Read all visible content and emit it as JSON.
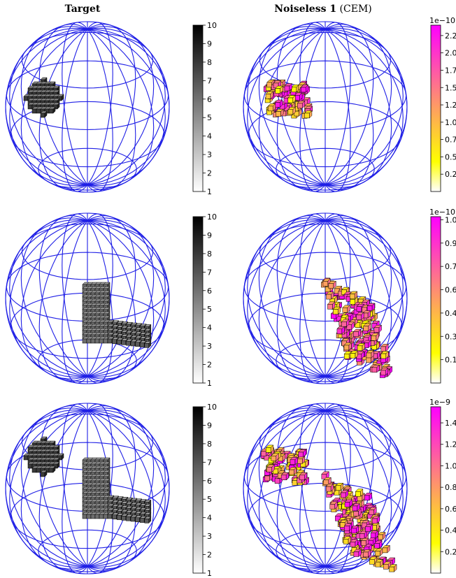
{
  "figure": {
    "col_titles": [
      {
        "bold": "Target",
        "normal": ""
      },
      {
        "bold": "Noiseless 1",
        "normal": " (CEM)"
      }
    ]
  },
  "colors": {
    "wireframe": "#1f1fe6",
    "gray_low": "#ffffff",
    "gray_high": "#000000",
    "spring_low": "#ffff00",
    "spring_high": "#ff00ff"
  },
  "chart_data": [
    {
      "type": "heatmap",
      "subtype": "3d-voxel",
      "row": 1,
      "column": "Target",
      "shapes": [
        "ball"
      ],
      "colormap": "gray_r",
      "colorbar": {
        "min": 1,
        "max": 10,
        "ticks": [
          1,
          2,
          3,
          4,
          5,
          6,
          7,
          8,
          9,
          10
        ],
        "tick_labels": [
          "1",
          "2",
          "3",
          "4",
          "5",
          "6",
          "7",
          "8",
          "9",
          "10"
        ],
        "offset_text": ""
      }
    },
    {
      "type": "heatmap",
      "subtype": "3d-voxel",
      "row": 1,
      "column": "Noiseless 1 (CEM)",
      "shapes": [
        "ball"
      ],
      "colormap": "spring_r",
      "colorbar": {
        "min": 0.0,
        "max": 2.4,
        "ticks": [
          0.25,
          0.5,
          0.75,
          1.0,
          1.25,
          1.5,
          1.75,
          2.0,
          2.25
        ],
        "tick_labels": [
          "0.25",
          "0.50",
          "0.75",
          "1.00",
          "1.25",
          "1.50",
          "1.75",
          "2.00",
          "2.25"
        ],
        "offset_text": "1e−10"
      }
    },
    {
      "type": "heatmap",
      "subtype": "3d-voxel",
      "row": 2,
      "column": "Target",
      "shapes": [
        "L"
      ],
      "colormap": "gray_r",
      "colorbar": {
        "min": 1,
        "max": 10,
        "ticks": [
          1,
          2,
          3,
          4,
          5,
          6,
          7,
          8,
          9,
          10
        ],
        "tick_labels": [
          "1",
          "2",
          "3",
          "4",
          "5",
          "6",
          "7",
          "8",
          "9",
          "10"
        ],
        "offset_text": ""
      }
    },
    {
      "type": "heatmap",
      "subtype": "3d-voxel",
      "row": 2,
      "column": "Noiseless 1 (CEM)",
      "shapes": [
        "L"
      ],
      "colormap": "spring_r",
      "colorbar": {
        "min": 0.0,
        "max": 1.07,
        "ticks": [
          0.15,
          0.3,
          0.45,
          0.6,
          0.75,
          0.9,
          1.05
        ],
        "tick_labels": [
          "0.15",
          "0.30",
          "0.45",
          "0.60",
          "0.75",
          "0.90",
          "1.05"
        ],
        "offset_text": "1e−10"
      }
    },
    {
      "type": "heatmap",
      "subtype": "3d-voxel",
      "row": 3,
      "column": "Target",
      "shapes": [
        "ball",
        "L"
      ],
      "colormap": "gray_r",
      "colorbar": {
        "min": 1,
        "max": 10,
        "ticks": [
          1,
          2,
          3,
          4,
          5,
          6,
          7,
          8,
          9,
          10
        ],
        "tick_labels": [
          "1",
          "2",
          "3",
          "4",
          "5",
          "6",
          "7",
          "8",
          "9",
          "10"
        ],
        "offset_text": ""
      }
    },
    {
      "type": "heatmap",
      "subtype": "3d-voxel",
      "row": 3,
      "column": "Noiseless 1 (CEM)",
      "shapes": [
        "ball",
        "L"
      ],
      "colormap": "spring_r",
      "colorbar": {
        "min": 0.0,
        "max": 1.55,
        "ticks": [
          0.2,
          0.4,
          0.6,
          0.8,
          1.0,
          1.2,
          1.4
        ],
        "tick_labels": [
          "0.2",
          "0.4",
          "0.6",
          "0.8",
          "1.0",
          "1.2",
          "1.4"
        ],
        "offset_text": "1e−9"
      }
    }
  ]
}
